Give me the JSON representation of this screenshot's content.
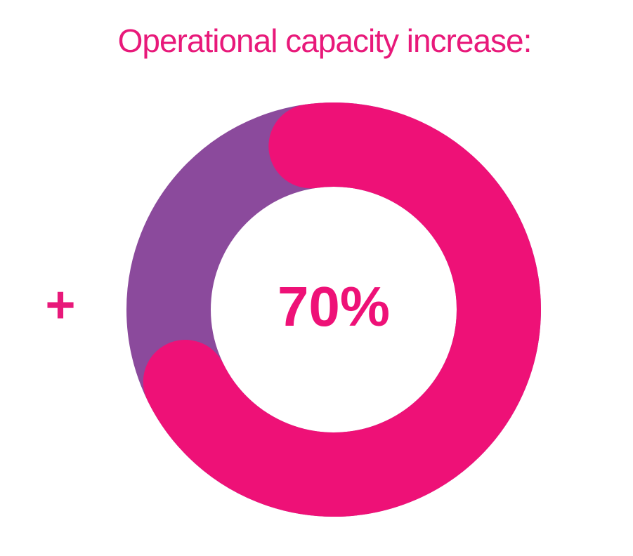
{
  "chart_data": {
    "type": "donut",
    "title": "Operational capacity increase:",
    "prefix": "+",
    "values": [
      70
    ],
    "value_labels": [
      "70%"
    ],
    "color": "#ee1177",
    "track_color": "#8b4a9c"
  }
}
